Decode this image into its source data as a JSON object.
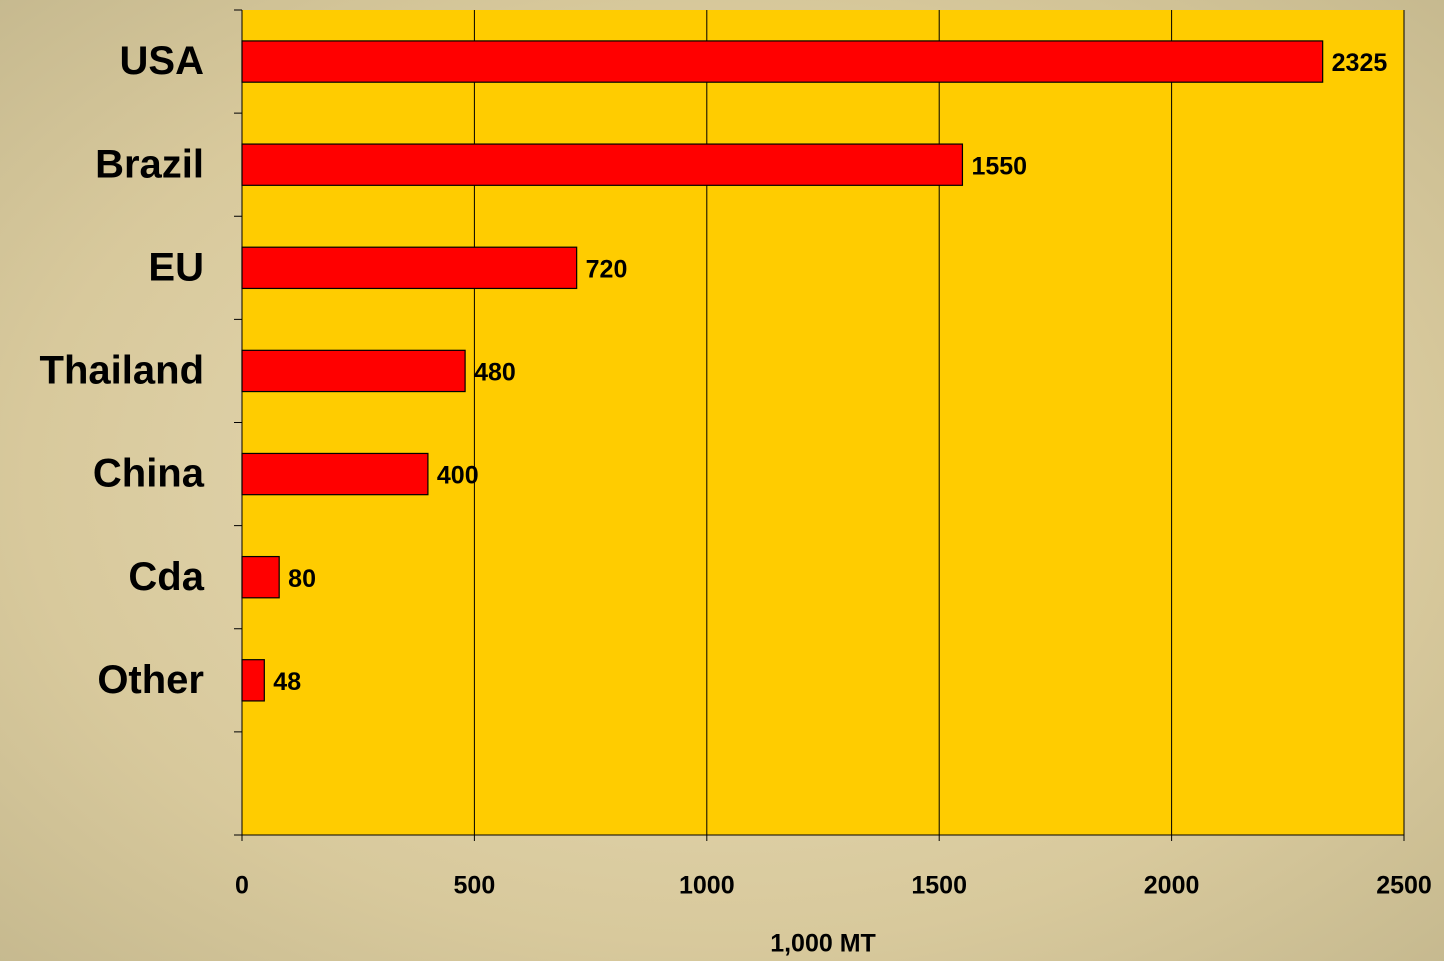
{
  "chart_data": {
    "type": "bar",
    "orientation": "horizontal",
    "categories": [
      "USA",
      "Brazil",
      "EU",
      "Thailand",
      "China",
      "Cda",
      "Other",
      null
    ],
    "values": [
      2325,
      1550,
      720,
      480,
      400,
      80,
      48,
      null
    ],
    "color": "#ff0000",
    "plot_background": "#ffcc00",
    "xlabel": "1,000 MT",
    "xlim": [
      0,
      2500
    ],
    "xticks": [
      0,
      500,
      1000,
      1500,
      2000,
      2500
    ],
    "grid": true
  }
}
